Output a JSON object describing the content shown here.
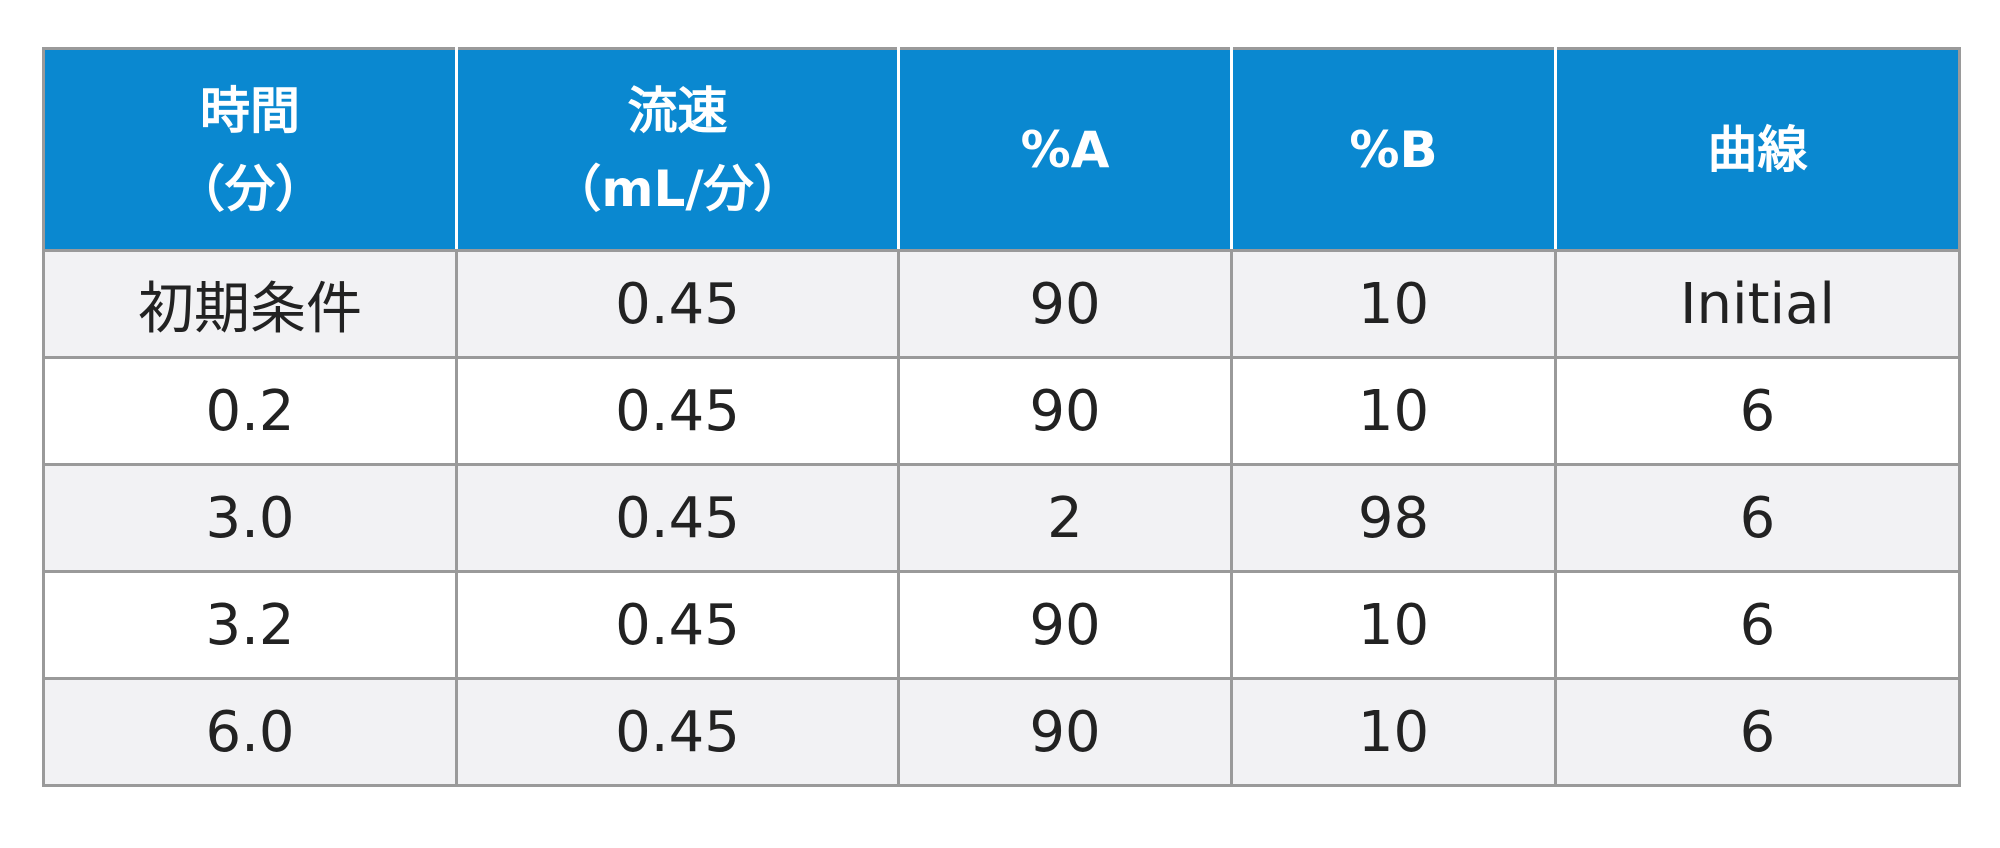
{
  "table": {
    "header": [
      [
        "時間",
        "（分）"
      ],
      [
        "流速",
        "（mL/分）"
      ],
      [
        "%A"
      ],
      [
        "%B"
      ],
      [
        "曲線"
      ]
    ],
    "rows": [
      [
        "初期条件",
        "0.45",
        "90",
        "10",
        "Initial"
      ],
      [
        "0.2",
        "0.45",
        "90",
        "10",
        "6"
      ],
      [
        "3.0",
        "0.45",
        "2",
        "98",
        "6"
      ],
      [
        "3.2",
        "0.45",
        "90",
        "10",
        "6"
      ],
      [
        "6.0",
        "0.45",
        "90",
        "10",
        "6"
      ]
    ]
  }
}
